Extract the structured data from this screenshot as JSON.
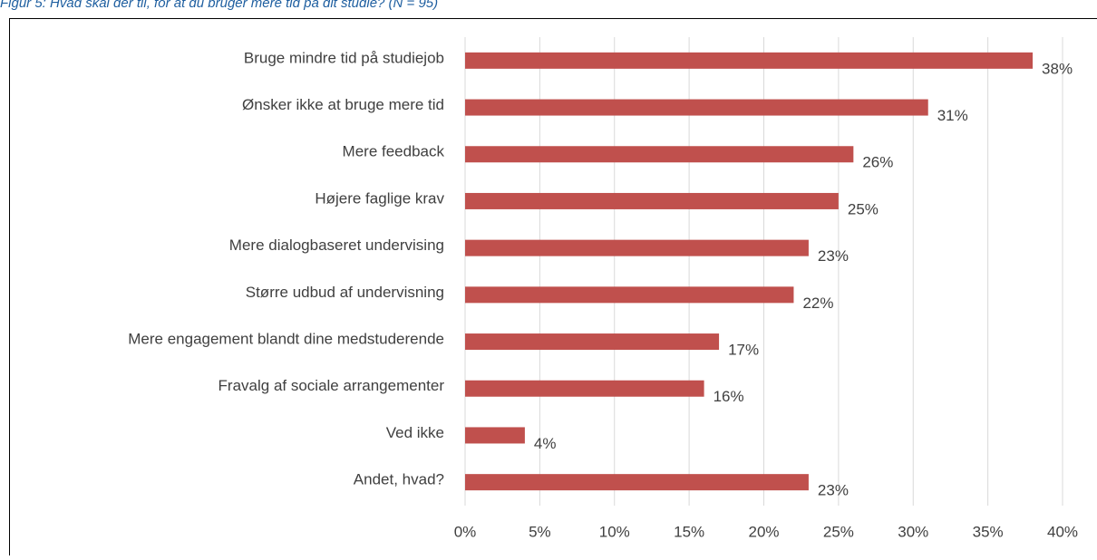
{
  "chart_data": {
    "type": "bar",
    "orientation": "horizontal",
    "title": "Figur 5: Hvad skal der til, for at du bruger mere tid på dit studie? (N = 95)",
    "categories": [
      "Bruge mindre tid på studiejob",
      "Ønsker ikke at bruge mere tid",
      "Mere feedback",
      "Højere faglige krav",
      "Mere dialogbaseret undervising",
      "Større udbud af undervisning",
      "Mere engagement blandt dine medstuderende",
      "Fravalg af sociale arrangementer",
      "Ved ikke",
      "Andet, hvad?"
    ],
    "values": [
      38,
      31,
      26,
      25,
      23,
      22,
      17,
      16,
      4,
      23
    ],
    "value_labels": [
      "38%",
      "31%",
      "26%",
      "25%",
      "23%",
      "22%",
      "17%",
      "16%",
      "4%",
      "23%"
    ],
    "color": "#c0504d",
    "xlim": [
      0,
      40
    ],
    "xticks": [
      {
        "value": 0,
        "label": "0%"
      },
      {
        "value": 5,
        "label": "5%"
      },
      {
        "value": 10,
        "label": "10%"
      },
      {
        "value": 15,
        "label": "15%"
      },
      {
        "value": 20,
        "label": "20%"
      },
      {
        "value": 25,
        "label": "25%"
      },
      {
        "value": 30,
        "label": "30%"
      },
      {
        "value": 35,
        "label": "35%"
      },
      {
        "value": 40,
        "label": "40%"
      }
    ],
    "grid": true
  }
}
